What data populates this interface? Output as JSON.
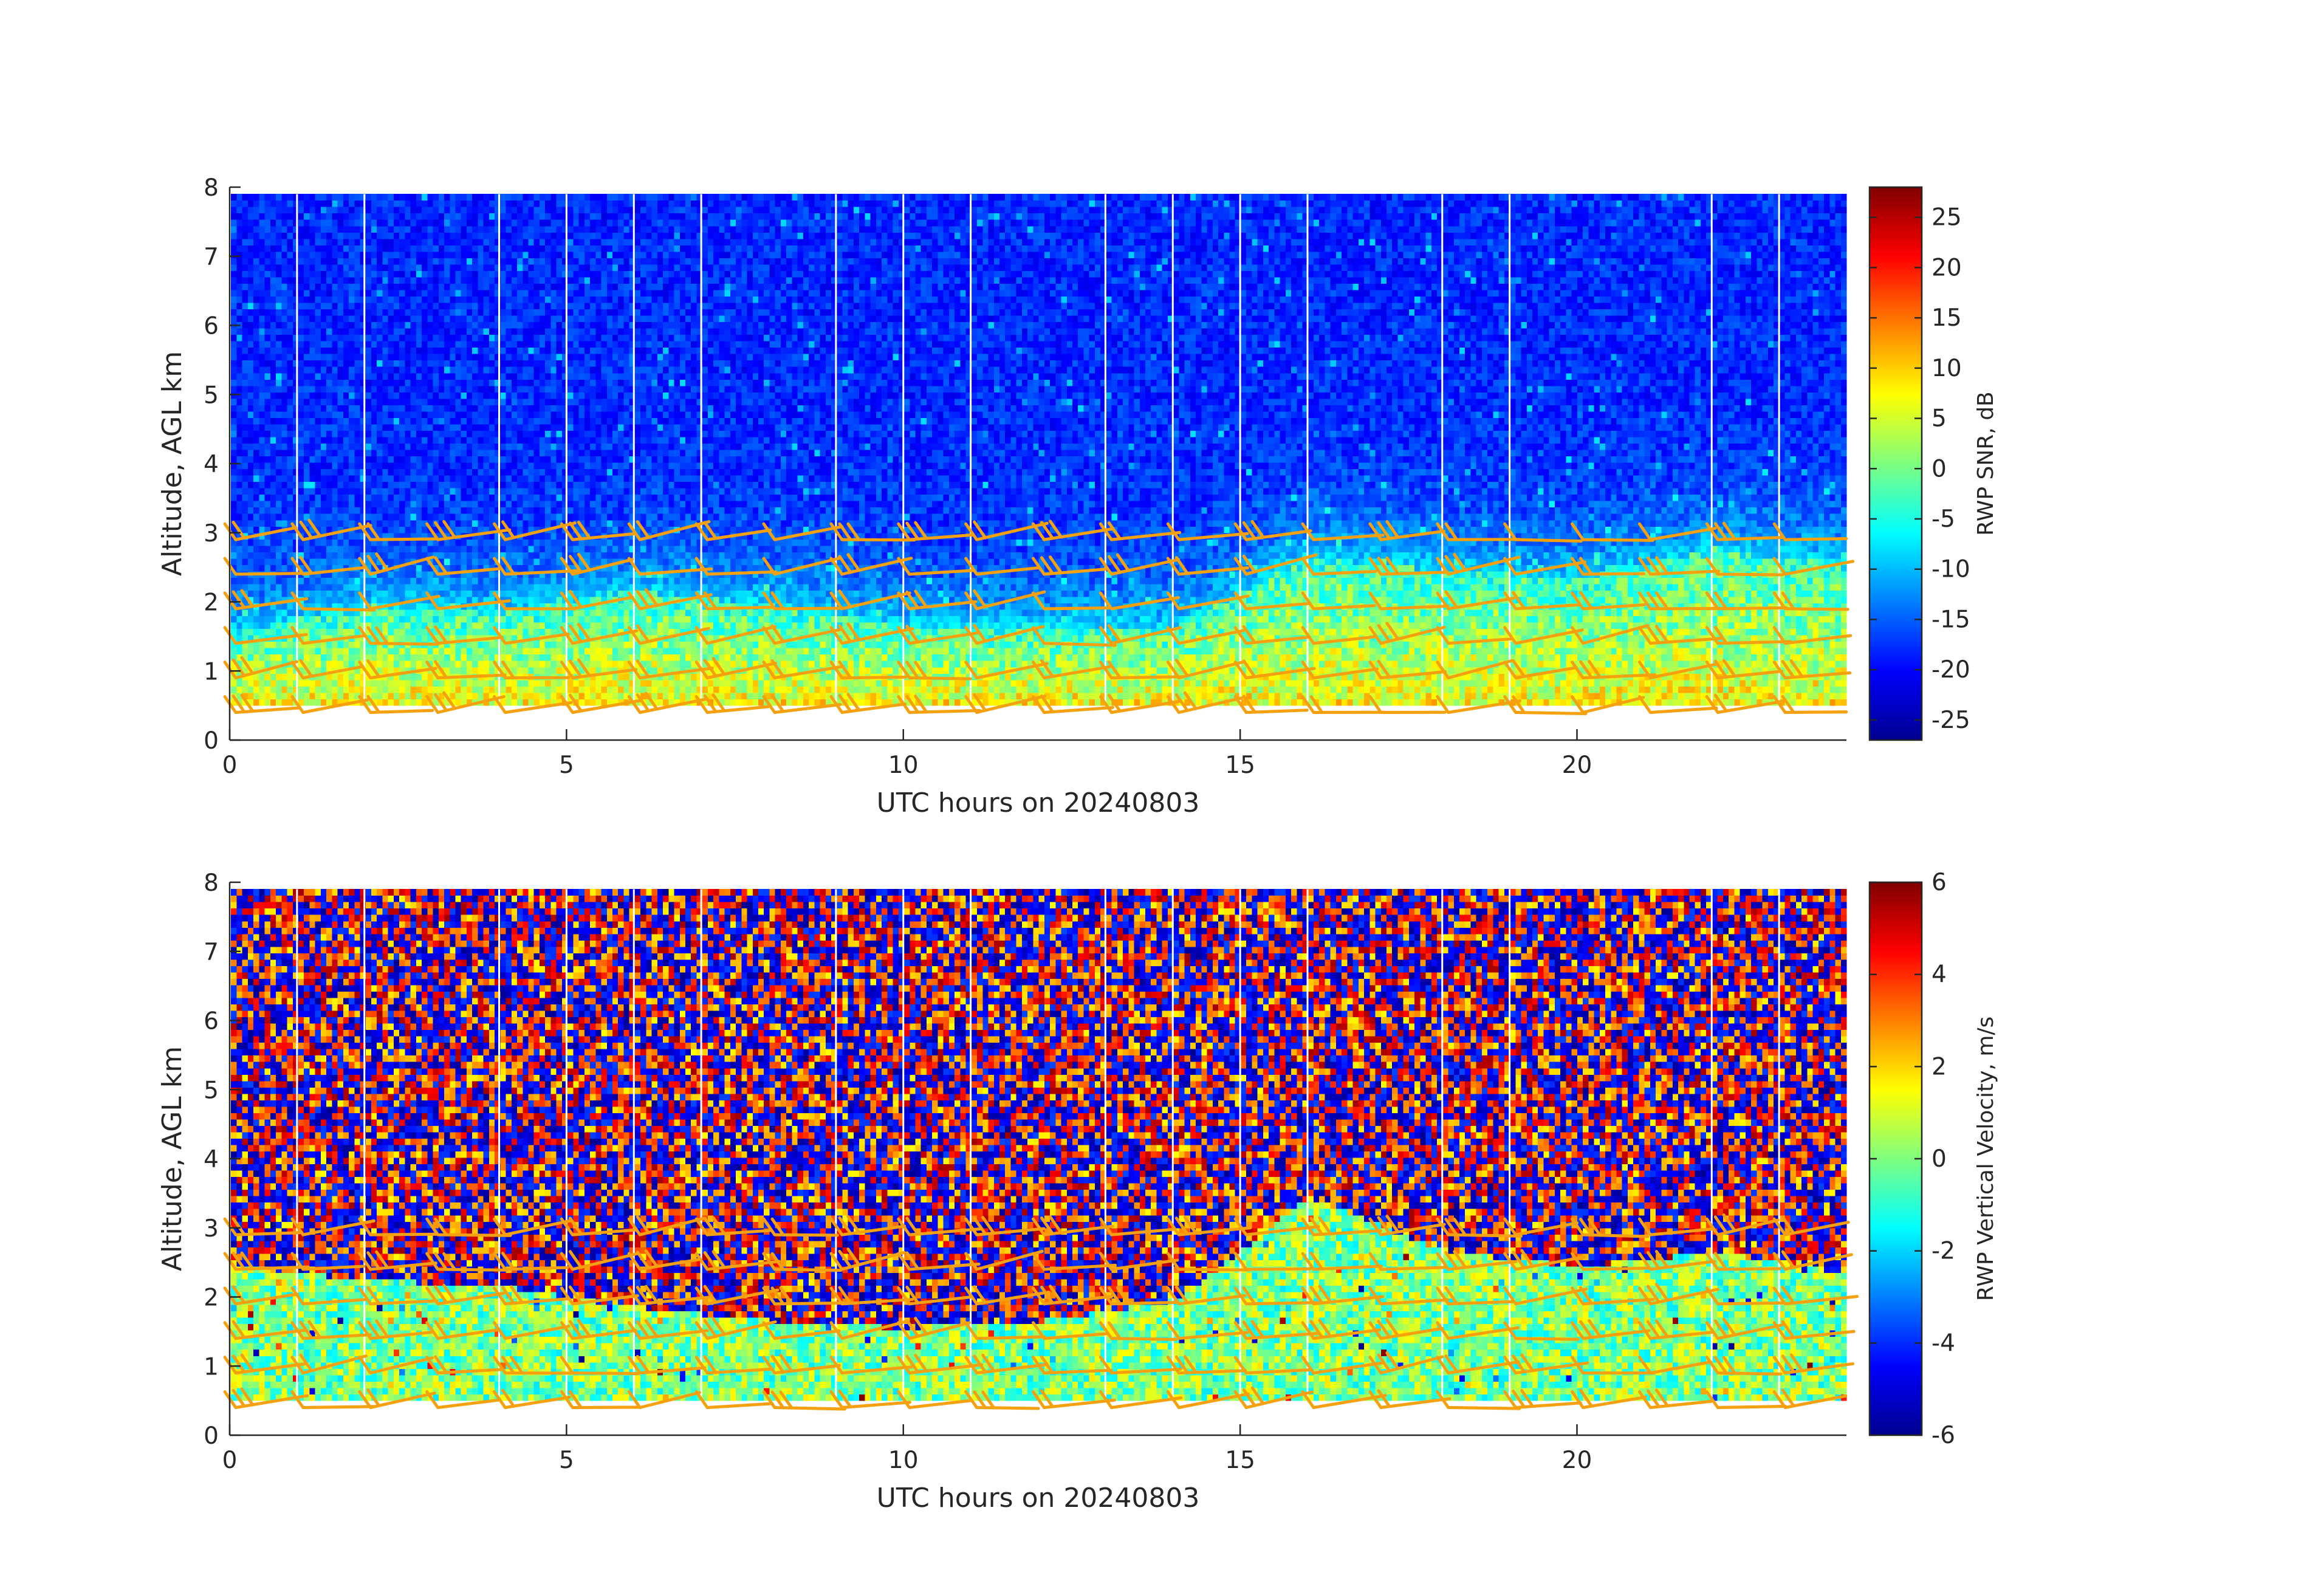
{
  "chart_data": [
    {
      "type": "heatmap",
      "panel": "top",
      "title": "",
      "xlabel": "UTC hours on 20240803",
      "ylabel": "Altitude, AGL km",
      "xlim": [
        0,
        24
      ],
      "ylim": [
        0,
        8
      ],
      "xticks": [
        0,
        5,
        10,
        15,
        20
      ],
      "yticks": [
        0,
        1,
        2,
        3,
        4,
        5,
        6,
        7,
        8
      ],
      "colorbar": {
        "label": "RWP SNR, dB",
        "range": [
          -27,
          28
        ],
        "ticks": [
          25,
          20,
          15,
          10,
          5,
          0,
          -5,
          -10,
          -15,
          -20,
          -25
        ],
        "colormap": "jet"
      },
      "data_altitude_range_km": [
        0.5,
        7.9
      ],
      "gap_hours": [
        1,
        2,
        4,
        5,
        6,
        7,
        9,
        10,
        11,
        13,
        14,
        15,
        16,
        18,
        19,
        22,
        23
      ],
      "boundary_layer_top_km": [
        {
          "x": 0,
          "y": 1.5
        },
        {
          "x": 2,
          "y": 1.9
        },
        {
          "x": 4,
          "y": 1.8
        },
        {
          "x": 6,
          "y": 2.1
        },
        {
          "x": 8,
          "y": 1.9
        },
        {
          "x": 10,
          "y": 1.6
        },
        {
          "x": 12,
          "y": 1.6
        },
        {
          "x": 14,
          "y": 1.6
        },
        {
          "x": 16,
          "y": 2.6
        },
        {
          "x": 18,
          "y": 2.4
        },
        {
          "x": 20,
          "y": 2.3
        },
        {
          "x": 22,
          "y": 2.7
        },
        {
          "x": 24,
          "y": 2.5
        }
      ],
      "wind_barbs": {
        "color": "#f5a10f",
        "times_hours": [
          0,
          1,
          2,
          3,
          4,
          5,
          6,
          7,
          8,
          9,
          10,
          11,
          12,
          13,
          14,
          15,
          16,
          17,
          18,
          19,
          20,
          21,
          22,
          23
        ],
        "levels_km": [
          0.4,
          0.9,
          1.4,
          1.9,
          2.4,
          2.9
        ]
      }
    },
    {
      "type": "heatmap",
      "panel": "bottom",
      "title": "",
      "xlabel": "UTC hours on 20240803",
      "ylabel": "Altitude, AGL km",
      "xlim": [
        0,
        24
      ],
      "ylim": [
        0,
        8
      ],
      "xticks": [
        0,
        5,
        10,
        15,
        20
      ],
      "yticks": [
        0,
        1,
        2,
        3,
        4,
        5,
        6,
        7,
        8
      ],
      "colorbar": {
        "label": "RWP Vertical Velocity, m/s",
        "range": [
          -6,
          6
        ],
        "ticks": [
          6,
          4,
          2,
          0,
          -2,
          -4,
          -6
        ],
        "colormap": "jet"
      },
      "data_altitude_range_km": [
        0.5,
        7.9
      ],
      "gap_hours": [
        1,
        2,
        4,
        5,
        6,
        7,
        9,
        10,
        11,
        13,
        14,
        15,
        16,
        18,
        19,
        22,
        23
      ],
      "coherent_layer_top_km": [
        {
          "x": 0,
          "y": 2.8
        },
        {
          "x": 2,
          "y": 2.6
        },
        {
          "x": 4,
          "y": 2.5
        },
        {
          "x": 6,
          "y": 2.2
        },
        {
          "x": 8,
          "y": 2.0
        },
        {
          "x": 10,
          "y": 1.9
        },
        {
          "x": 12,
          "y": 2.0
        },
        {
          "x": 14,
          "y": 2.3
        },
        {
          "x": 16,
          "y": 3.8
        },
        {
          "x": 18,
          "y": 3.0
        },
        {
          "x": 20,
          "y": 2.8
        },
        {
          "x": 22,
          "y": 3.0
        },
        {
          "x": 24,
          "y": 2.7
        }
      ],
      "wind_barbs": {
        "color": "#f5a10f",
        "times_hours": [
          0,
          1,
          2,
          3,
          4,
          5,
          6,
          7,
          8,
          9,
          10,
          11,
          12,
          13,
          14,
          15,
          16,
          17,
          18,
          19,
          20,
          21,
          22,
          23
        ],
        "levels_km": [
          0.4,
          0.9,
          1.4,
          1.9,
          2.4,
          2.9
        ]
      }
    }
  ]
}
